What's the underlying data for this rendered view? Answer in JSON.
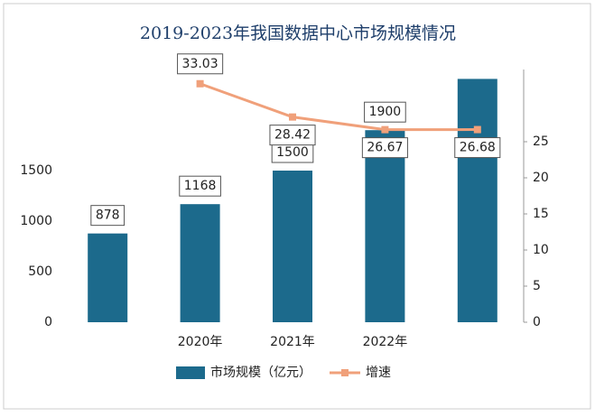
{
  "chart_data": {
    "type": "bar_line",
    "title": "2019-2023年我国数据中心市场规模情况",
    "categories": [
      null,
      "2020年",
      "2021年",
      "2022年",
      null
    ],
    "series": [
      {
        "name": "市场规模（亿元）",
        "color": "#1c6a8c",
        "values": [
          878,
          1168,
          1500,
          1900,
          2407
        ],
        "value_labels": [
          "878",
          "1168",
          "1500",
          "1900",
          null
        ]
      },
      {
        "name": "增速",
        "color": "#f0a07a",
        "axis": "y2",
        "values": [
          null,
          33.03,
          28.42,
          26.67,
          26.68
        ]
      }
    ],
    "ylim": [
      0,
      2500
    ],
    "yticks": [
      0,
      500,
      1000,
      1500
    ],
    "y2lim": [
      0,
      35
    ],
    "y2ticks": [
      0,
      5,
      10,
      15,
      20,
      25
    ],
    "legend": "bottom"
  }
}
